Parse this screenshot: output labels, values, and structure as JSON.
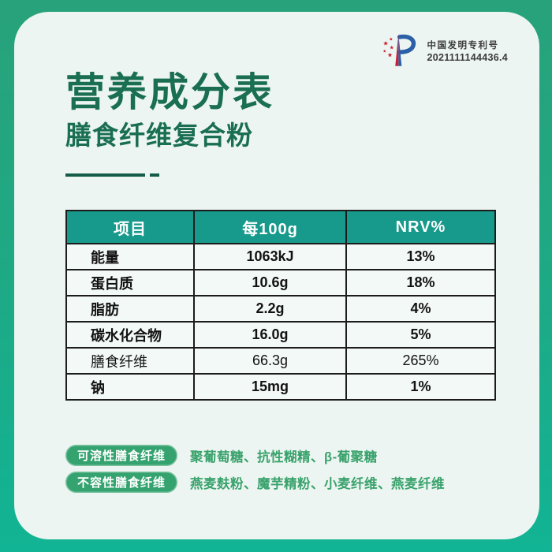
{
  "patent": {
    "line1": "中国发明专利号",
    "line2": "2021111144436.4"
  },
  "header": {
    "title": "营养成分表",
    "subtitle": "膳食纤维复合粉"
  },
  "table": {
    "columns": [
      "项目",
      "每100g",
      "NRV%"
    ],
    "rows": [
      {
        "item": "能量",
        "per100g": "1063kJ",
        "nrv": "13%",
        "emphasis": true
      },
      {
        "item": "蛋白质",
        "per100g": "10.6g",
        "nrv": "18%",
        "emphasis": true
      },
      {
        "item": "脂肪",
        "per100g": "2.2g",
        "nrv": "4%",
        "emphasis": true
      },
      {
        "item": "碳水化合物",
        "per100g": "16.0g",
        "nrv": "5%",
        "emphasis": true
      },
      {
        "item": "膳食纤维",
        "per100g": "66.3g",
        "nrv": "265%",
        "emphasis": false
      },
      {
        "item": "钠",
        "per100g": "15mg",
        "nrv": "1%",
        "emphasis": true
      }
    ]
  },
  "legend": [
    {
      "label": "可溶性膳食纤维",
      "value": "聚葡萄糖、抗性糊精、β-葡聚糖"
    },
    {
      "label": "不容性膳食纤维",
      "value": "燕麦麸粉、魔芋精粉、小麦纤维、燕麦纤维"
    }
  ],
  "colors": {
    "background_top": "#28a27a",
    "background_bottom": "#11b494",
    "card": "#ecf5f1",
    "heading_text": "#1a6e52",
    "table_header_bg": "#179a8b",
    "table_header_text": "#ffffff",
    "table_row_bg": "#f3f9f6",
    "table_border": "#1c1c1c",
    "pill_bg": "#35a36f",
    "ingredient_text": "#3aa26c",
    "patent_text": "#3c3c3c",
    "logo_blue": "#2b5fa8",
    "logo_red": "#cf2033"
  }
}
